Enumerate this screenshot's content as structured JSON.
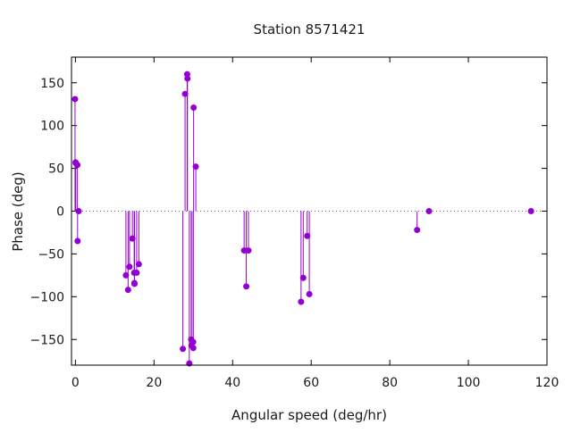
{
  "chart_data": {
    "type": "scatter",
    "style": "impulses-with-points",
    "title": "Station 8571421",
    "xlabel": "Angular speed (deg/hr)",
    "ylabel": "Phase (deg)",
    "xlim": [
      -1,
      120
    ],
    "ylim": [
      -180,
      180
    ],
    "xticks": [
      0,
      20,
      40,
      60,
      80,
      100,
      120
    ],
    "yticks": [
      -150,
      -100,
      -50,
      0,
      50,
      100,
      150
    ],
    "zero_line": true,
    "grid": false,
    "color": "#9400d3",
    "series": [
      {
        "points": [
          [
            -0.1,
            131
          ],
          [
            0.04,
            57
          ],
          [
            0.08,
            56
          ],
          [
            0.5,
            54
          ],
          [
            0.82,
            0
          ],
          [
            0.55,
            -35
          ],
          [
            12.85,
            -75
          ],
          [
            13.4,
            -92
          ],
          [
            13.76,
            -65
          ],
          [
            14.5,
            -32
          ],
          [
            14.96,
            -72
          ],
          [
            15.0,
            -84
          ],
          [
            15.04,
            -85
          ],
          [
            15.58,
            -72
          ],
          [
            16.14,
            -62
          ],
          [
            27.34,
            -161
          ],
          [
            27.9,
            137
          ],
          [
            28.44,
            160
          ],
          [
            28.51,
            155
          ],
          [
            28.98,
            -178
          ],
          [
            29.46,
            -150
          ],
          [
            29.53,
            -157
          ],
          [
            29.96,
            -153
          ],
          [
            30.0,
            -160
          ],
          [
            30.08,
            121
          ],
          [
            30.63,
            52
          ],
          [
            42.93,
            -46
          ],
          [
            43.48,
            -88
          ],
          [
            44.03,
            -46
          ],
          [
            57.42,
            -106
          ],
          [
            57.97,
            -78
          ],
          [
            58.98,
            -29
          ],
          [
            59.52,
            -97
          ],
          [
            86.95,
            -22
          ],
          [
            89.98,
            0
          ],
          [
            115.94,
            0
          ]
        ]
      }
    ]
  }
}
